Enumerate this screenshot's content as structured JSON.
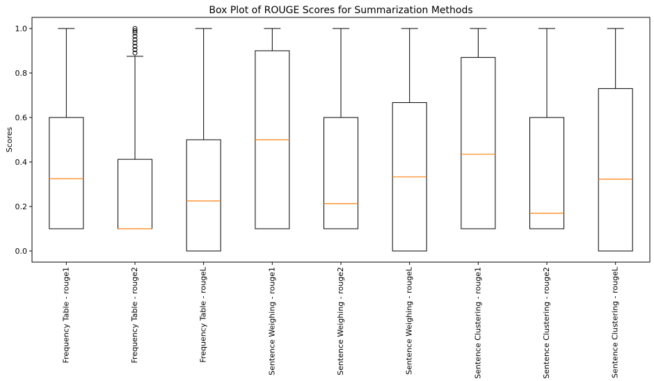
{
  "chart_data": {
    "type": "box",
    "title": "Box Plot of ROUGE Scores for Summarization Methods",
    "xlabel": "",
    "ylabel": "Scores",
    "ylim": [
      -0.05,
      1.05
    ],
    "yticks": [
      0.0,
      0.2,
      0.4,
      0.6,
      0.8,
      1.0
    ],
    "ytick_labels": [
      "0.0",
      "0.2",
      "0.4",
      "0.6",
      "0.8",
      "1.0"
    ],
    "grid": false,
    "colors": {
      "box": "#000000",
      "median": "#ff7f0e"
    },
    "categories": [
      "Frequency Table - rouge1",
      "Frequency Table - rouge2",
      "Frequency Table - rougeL",
      "Sentence Weighing - rouge1",
      "Sentence Weighing - rouge2",
      "Sentence Weighing - rougeL",
      "Sentence Clustering - rouge1",
      "Sentence Clustering - rouge2",
      "Sentence Clustering - rougeL"
    ],
    "boxes": [
      {
        "whisker_low": 0.1,
        "q1": 0.1,
        "median": 0.325,
        "q3": 0.6,
        "whisker_high": 1.0,
        "outliers": []
      },
      {
        "whisker_low": 0.1,
        "q1": 0.1,
        "median": 0.1,
        "q3": 0.412,
        "whisker_high": 0.875,
        "outliers": [
          0.89,
          0.905,
          0.92,
          0.935,
          0.95,
          0.965,
          0.98,
          0.99,
          1.0
        ]
      },
      {
        "whisker_low": 0.0,
        "q1": 0.0,
        "median": 0.225,
        "q3": 0.5,
        "whisker_high": 1.0,
        "outliers": []
      },
      {
        "whisker_low": 0.1,
        "q1": 0.1,
        "median": 0.5,
        "q3": 0.9,
        "whisker_high": 1.0,
        "outliers": []
      },
      {
        "whisker_low": 0.1,
        "q1": 0.1,
        "median": 0.213,
        "q3": 0.6,
        "whisker_high": 1.0,
        "outliers": []
      },
      {
        "whisker_low": 0.0,
        "q1": 0.0,
        "median": 0.333,
        "q3": 0.667,
        "whisker_high": 1.0,
        "outliers": []
      },
      {
        "whisker_low": 0.1,
        "q1": 0.1,
        "median": 0.435,
        "q3": 0.87,
        "whisker_high": 1.0,
        "outliers": []
      },
      {
        "whisker_low": 0.1,
        "q1": 0.1,
        "median": 0.17,
        "q3": 0.6,
        "whisker_high": 1.0,
        "outliers": []
      },
      {
        "whisker_low": 0.0,
        "q1": 0.0,
        "median": 0.323,
        "q3": 0.73,
        "whisker_high": 1.0,
        "outliers": []
      }
    ]
  }
}
